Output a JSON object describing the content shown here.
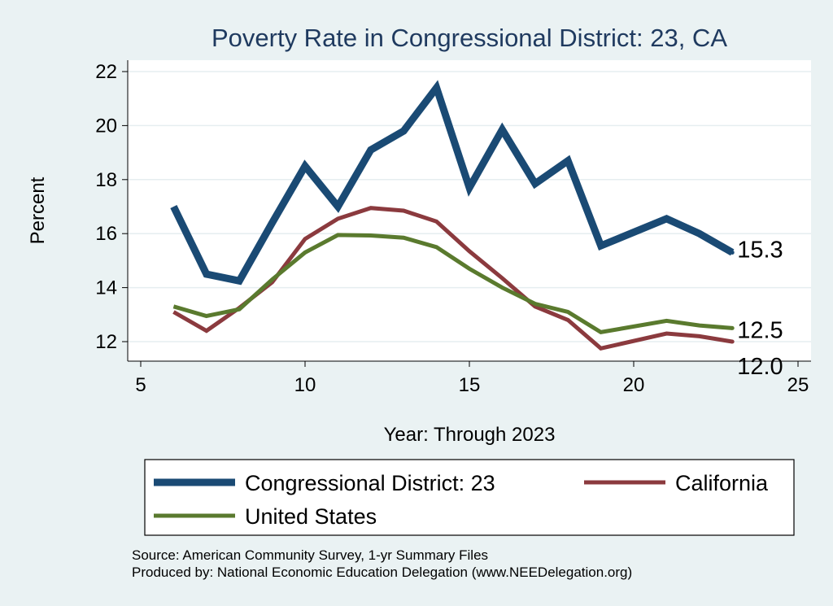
{
  "chart_data": {
    "type": "line",
    "title": "Poverty Rate in Congressional District:  23, CA",
    "xlabel": "Year: Through 2023",
    "ylabel": "Percent",
    "xlim": [
      5,
      25
    ],
    "ylim": [
      11.5,
      22.5
    ],
    "xticks": [
      "5",
      "10",
      "15",
      "20",
      "25"
    ],
    "yticks": [
      "12",
      "14",
      "16",
      "18",
      "20",
      "22"
    ],
    "grid": true,
    "legend_position": "bottom",
    "x": [
      6,
      7,
      8,
      9,
      10,
      11,
      12,
      13,
      14,
      15,
      16,
      17,
      18,
      19,
      21,
      22,
      23
    ],
    "series": [
      {
        "name": "Congressional District:  23",
        "color": "#1a4a74",
        "values": [
          17.0,
          14.5,
          14.25,
          16.4,
          18.5,
          17.0,
          19.1,
          19.8,
          21.4,
          17.7,
          19.85,
          17.85,
          18.7,
          15.55,
          16.55,
          16.0,
          15.3
        ],
        "end_label": "15.3"
      },
      {
        "name": "California",
        "color": "#8b3a3e",
        "values": [
          13.1,
          12.4,
          13.25,
          14.2,
          15.8,
          16.55,
          16.95,
          16.85,
          16.45,
          15.35,
          14.35,
          13.3,
          12.8,
          11.75,
          12.3,
          12.2,
          12.0
        ],
        "end_label": "12.0"
      },
      {
        "name": "United States",
        "color": "#5a7a2e",
        "values": [
          13.3,
          12.95,
          13.2,
          14.3,
          15.3,
          15.95,
          15.93,
          15.85,
          15.5,
          14.7,
          14.0,
          13.4,
          13.1,
          12.35,
          12.77,
          12.6,
          12.5
        ],
        "end_label": "12.5"
      }
    ]
  },
  "source": "Source: American Community Survey, 1-yr Summary Files",
  "produced_by": "Produced by: National Economic Education Delegation (www.NEEDelegation.org)"
}
